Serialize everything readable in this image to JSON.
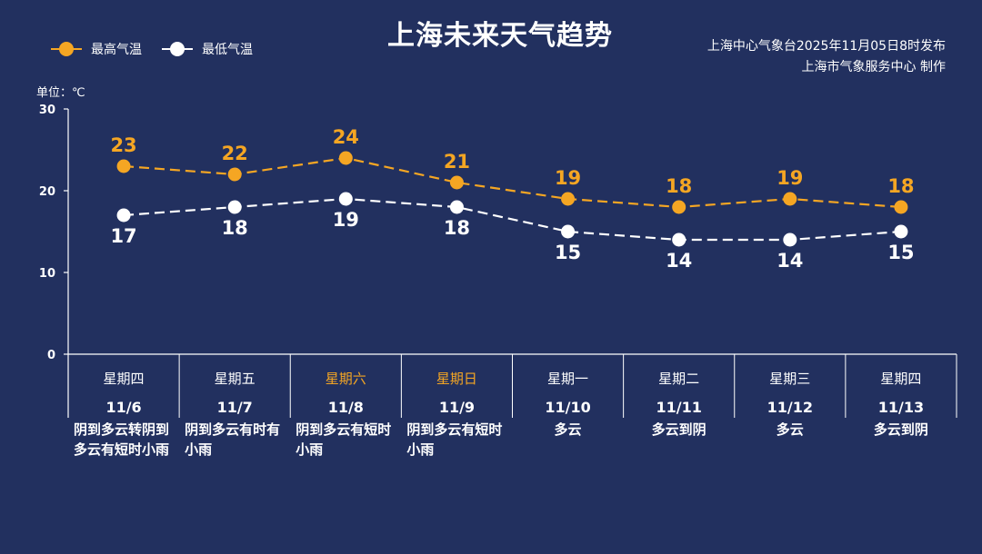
{
  "title": "上海未来天气趋势",
  "legend": {
    "high": {
      "label": "最高气温",
      "color": "#f5a623"
    },
    "low": {
      "label": "最低气温",
      "color": "#ffffff"
    }
  },
  "source": {
    "line1": "上海中心气象台2025年11月05日8时发布",
    "line2": "上海市气象服务中心  制作"
  },
  "unit_label": "单位：℃",
  "colors": {
    "background": "#22305f",
    "high": "#f5a623",
    "low": "#ffffff",
    "weekend": "#f5a623"
  },
  "chart_data": {
    "type": "line",
    "ylim": [
      0,
      30
    ],
    "yticks": [
      0,
      10,
      20,
      30
    ],
    "categories": [
      "11/6",
      "11/7",
      "11/8",
      "11/9",
      "11/10",
      "11/11",
      "11/12",
      "11/13"
    ],
    "series": [
      {
        "name": "最高气温",
        "values": [
          23,
          22,
          24,
          21,
          19,
          18,
          19,
          18
        ]
      },
      {
        "name": "最低气温",
        "values": [
          17,
          18,
          19,
          18,
          15,
          14,
          14,
          15
        ]
      }
    ]
  },
  "days": [
    {
      "weekday": "星期四",
      "date": "11/6",
      "weather": "阴到多云转阴到多云有短时小雨",
      "weekend": false
    },
    {
      "weekday": "星期五",
      "date": "11/7",
      "weather": "阴到多云有时有小雨",
      "weekend": false
    },
    {
      "weekday": "星期六",
      "date": "11/8",
      "weather": "阴到多云有短时小雨",
      "weekend": true
    },
    {
      "weekday": "星期日",
      "date": "11/9",
      "weather": "阴到多云有短时小雨",
      "weekend": true
    },
    {
      "weekday": "星期一",
      "date": "11/10",
      "weather": "多云",
      "weekend": false
    },
    {
      "weekday": "星期二",
      "date": "11/11",
      "weather": "多云到阴",
      "weekend": false
    },
    {
      "weekday": "星期三",
      "date": "11/12",
      "weather": "多云",
      "weekend": false
    },
    {
      "weekday": "星期四",
      "date": "11/13",
      "weather": "多云到阴",
      "weekend": false
    }
  ]
}
